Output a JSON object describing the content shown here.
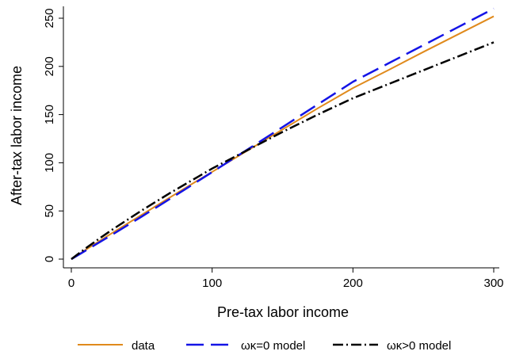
{
  "chart_data": {
    "type": "line",
    "xlabel": "Pre-tax labor income",
    "ylabel": "After-tax labor income",
    "xlim": [
      0,
      300
    ],
    "ylim": [
      0,
      260
    ],
    "xticks": [
      0,
      100,
      200,
      300
    ],
    "yticks": [
      0,
      50,
      100,
      150,
      200,
      250
    ],
    "grid": false,
    "legend_position": "bottom",
    "series": [
      {
        "name": "data",
        "color": "#e08a1c",
        "style": "solid",
        "x": [
          0,
          10,
          20,
          30,
          40,
          50,
          60,
          70,
          80,
          90,
          100,
          125,
          150,
          175,
          200,
          225,
          250,
          275,
          300
        ],
        "y": [
          0,
          9.5,
          18.8,
          28,
          37,
          46,
          55,
          64,
          73,
          81.8,
          90.5,
          112.5,
          134.5,
          156.5,
          177.5,
          196,
          215,
          233.5,
          252
        ]
      },
      {
        "name": "ωκ=0 model",
        "color": "#1414e6",
        "style": "dashed",
        "x": [
          0,
          10,
          20,
          30,
          40,
          50,
          60,
          70,
          80,
          90,
          100,
          125,
          150,
          175,
          200,
          225,
          250,
          275,
          300
        ],
        "y": [
          0,
          8.7,
          17.5,
          26.3,
          35.2,
          44.2,
          53.3,
          62.5,
          71.7,
          81,
          90.3,
          113.6,
          137,
          160.5,
          184,
          203,
          222,
          241,
          260
        ]
      },
      {
        "name": "ωκ>0 model",
        "color": "#000000",
        "style": "dashdot",
        "x": [
          0,
          10,
          20,
          30,
          40,
          50,
          60,
          70,
          80,
          90,
          100,
          125,
          150,
          175,
          200,
          225,
          250,
          275,
          300
        ],
        "y": [
          0,
          11,
          21.5,
          31.5,
          41,
          50.5,
          59.5,
          68.5,
          77,
          85.5,
          94,
          113,
          132,
          150,
          167,
          181.5,
          196,
          210.5,
          225
        ]
      }
    ]
  }
}
